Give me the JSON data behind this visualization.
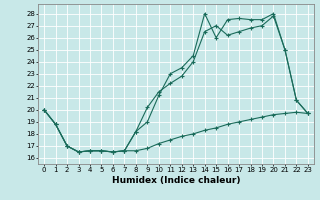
{
  "xlabel": "Humidex (Indice chaleur)",
  "bg_color": "#c8e8e8",
  "line_color": "#1a6b5a",
  "xlim": [
    -0.5,
    23.5
  ],
  "ylim": [
    15.5,
    28.8
  ],
  "xticks": [
    0,
    1,
    2,
    3,
    4,
    5,
    6,
    7,
    8,
    9,
    10,
    11,
    12,
    13,
    14,
    15,
    16,
    17,
    18,
    19,
    20,
    21,
    22,
    23
  ],
  "yticks": [
    16,
    17,
    18,
    19,
    20,
    21,
    22,
    23,
    24,
    25,
    26,
    27,
    28
  ],
  "line1_x": [
    0,
    1,
    2,
    3,
    4,
    5,
    6,
    7,
    8,
    9,
    10,
    11,
    12,
    13,
    14,
    15,
    16,
    17,
    18,
    19,
    20,
    21,
    22,
    23
  ],
  "line1_y": [
    20.0,
    18.8,
    17.0,
    16.5,
    16.6,
    16.6,
    16.5,
    16.6,
    18.2,
    19.0,
    21.2,
    23.0,
    23.5,
    24.5,
    28.0,
    26.0,
    27.5,
    27.6,
    27.5,
    27.5,
    28.0,
    25.0,
    20.8,
    19.7
  ],
  "line2_x": [
    0,
    1,
    2,
    3,
    4,
    5,
    6,
    7,
    8,
    9,
    10,
    11,
    12,
    13,
    14,
    15,
    16,
    17,
    18,
    19,
    20,
    21,
    22,
    23
  ],
  "line2_y": [
    20.0,
    18.8,
    17.0,
    16.5,
    16.6,
    16.6,
    16.5,
    16.6,
    18.2,
    20.2,
    21.5,
    22.2,
    22.8,
    24.0,
    26.5,
    27.0,
    26.2,
    26.5,
    26.8,
    27.0,
    27.8,
    25.0,
    20.8,
    19.7
  ],
  "line3_x": [
    0,
    1,
    2,
    3,
    4,
    5,
    6,
    7,
    8,
    9,
    10,
    11,
    12,
    13,
    14,
    15,
    16,
    17,
    18,
    19,
    20,
    21,
    22,
    23
  ],
  "line3_y": [
    20.0,
    18.8,
    17.0,
    16.5,
    16.6,
    16.6,
    16.5,
    16.6,
    16.6,
    16.8,
    17.2,
    17.5,
    17.8,
    18.0,
    18.3,
    18.5,
    18.8,
    19.0,
    19.2,
    19.4,
    19.6,
    19.7,
    19.8,
    19.7
  ],
  "xlabel_fontsize": 6.5,
  "tick_fontsize": 5.0
}
